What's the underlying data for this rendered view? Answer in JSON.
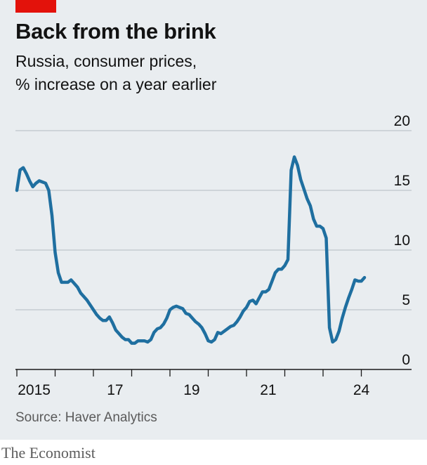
{
  "title": "Back from the brink",
  "subtitle_lines": [
    "Russia, consumer prices,",
    "% increase on a year earlier"
  ],
  "source": "Source: Haver Analytics",
  "brand": "The Economist",
  "colors": {
    "line": "#1f6fa0",
    "grid": "#b4bcc2",
    "axis": "#1a1a1a",
    "accent": "#e3120b"
  },
  "chart_data": {
    "type": "line",
    "title": "Back from the brink",
    "subtitle": "Russia, consumer prices, % increase on a year earlier",
    "ylabel": "",
    "xlabel": "",
    "ylim": [
      0,
      20
    ],
    "yticks": [
      0,
      5,
      10,
      15,
      20
    ],
    "ytick_labels": [
      "0",
      "5",
      "10",
      "15",
      "20"
    ],
    "xlim": [
      2015.0,
      2024.2
    ],
    "xticks": [
      2015,
      2016,
      2017,
      2018,
      2019,
      2020,
      2021,
      2022,
      2023,
      2024
    ],
    "xtick_labels": [
      {
        "x": 2015.5,
        "label": "2015"
      },
      {
        "x": 2017.5,
        "label": "17"
      },
      {
        "x": 2019.5,
        "label": "19"
      },
      {
        "x": 2021.5,
        "label": "21"
      },
      {
        "x": 2024.0,
        "label": "24"
      }
    ],
    "grid": true,
    "series": [
      {
        "name": "",
        "x": [
          2015.0,
          2015.083,
          2015.167,
          2015.25,
          2015.333,
          2015.417,
          2015.5,
          2015.583,
          2015.667,
          2015.75,
          2015.833,
          2015.917,
          2016.0,
          2016.083,
          2016.167,
          2016.25,
          2016.333,
          2016.417,
          2016.5,
          2016.583,
          2016.667,
          2016.75,
          2016.833,
          2016.917,
          2017.0,
          2017.083,
          2017.167,
          2017.25,
          2017.333,
          2017.417,
          2017.5,
          2017.583,
          2017.667,
          2017.75,
          2017.833,
          2017.917,
          2018.0,
          2018.083,
          2018.167,
          2018.25,
          2018.333,
          2018.417,
          2018.5,
          2018.583,
          2018.667,
          2018.75,
          2018.833,
          2018.917,
          2019.0,
          2019.083,
          2019.167,
          2019.25,
          2019.333,
          2019.417,
          2019.5,
          2019.583,
          2019.667,
          2019.75,
          2019.833,
          2019.917,
          2020.0,
          2020.083,
          2020.167,
          2020.25,
          2020.333,
          2020.417,
          2020.5,
          2020.583,
          2020.667,
          2020.75,
          2020.833,
          2020.917,
          2021.0,
          2021.083,
          2021.167,
          2021.25,
          2021.333,
          2021.417,
          2021.5,
          2021.583,
          2021.667,
          2021.75,
          2021.833,
          2021.917,
          2022.0,
          2022.083,
          2022.167,
          2022.25,
          2022.333,
          2022.417,
          2022.5,
          2022.583,
          2022.667,
          2022.75,
          2022.833,
          2022.917,
          2023.0,
          2023.083,
          2023.167,
          2023.25,
          2023.333,
          2023.417,
          2023.5,
          2023.583,
          2023.667,
          2023.75,
          2023.833,
          2023.917,
          2024.0,
          2024.083
        ],
        "values": [
          15.0,
          16.7,
          16.9,
          16.4,
          15.8,
          15.3,
          15.6,
          15.8,
          15.7,
          15.6,
          15.0,
          12.9,
          9.8,
          8.1,
          7.3,
          7.3,
          7.3,
          7.5,
          7.2,
          6.9,
          6.4,
          6.1,
          5.8,
          5.4,
          5.0,
          4.6,
          4.3,
          4.1,
          4.1,
          4.4,
          3.9,
          3.3,
          3.0,
          2.7,
          2.5,
          2.5,
          2.2,
          2.2,
          2.4,
          2.4,
          2.4,
          2.3,
          2.5,
          3.1,
          3.4,
          3.5,
          3.8,
          4.3,
          5.0,
          5.2,
          5.3,
          5.2,
          5.1,
          4.7,
          4.6,
          4.3,
          4.0,
          3.8,
          3.5,
          3.0,
          2.4,
          2.3,
          2.5,
          3.1,
          3.0,
          3.2,
          3.4,
          3.6,
          3.7,
          4.0,
          4.4,
          4.9,
          5.2,
          5.7,
          5.8,
          5.5,
          6.0,
          6.5,
          6.5,
          6.7,
          7.4,
          8.1,
          8.4,
          8.4,
          8.7,
          9.2,
          16.7,
          17.8,
          17.1,
          15.9,
          15.1,
          14.3,
          13.7,
          12.6,
          12.0,
          12.0,
          11.8,
          11.0,
          3.5,
          2.3,
          2.5,
          3.2,
          4.3,
          5.2,
          6.0,
          6.7,
          7.5,
          7.4,
          7.4,
          7.7
        ]
      }
    ]
  }
}
